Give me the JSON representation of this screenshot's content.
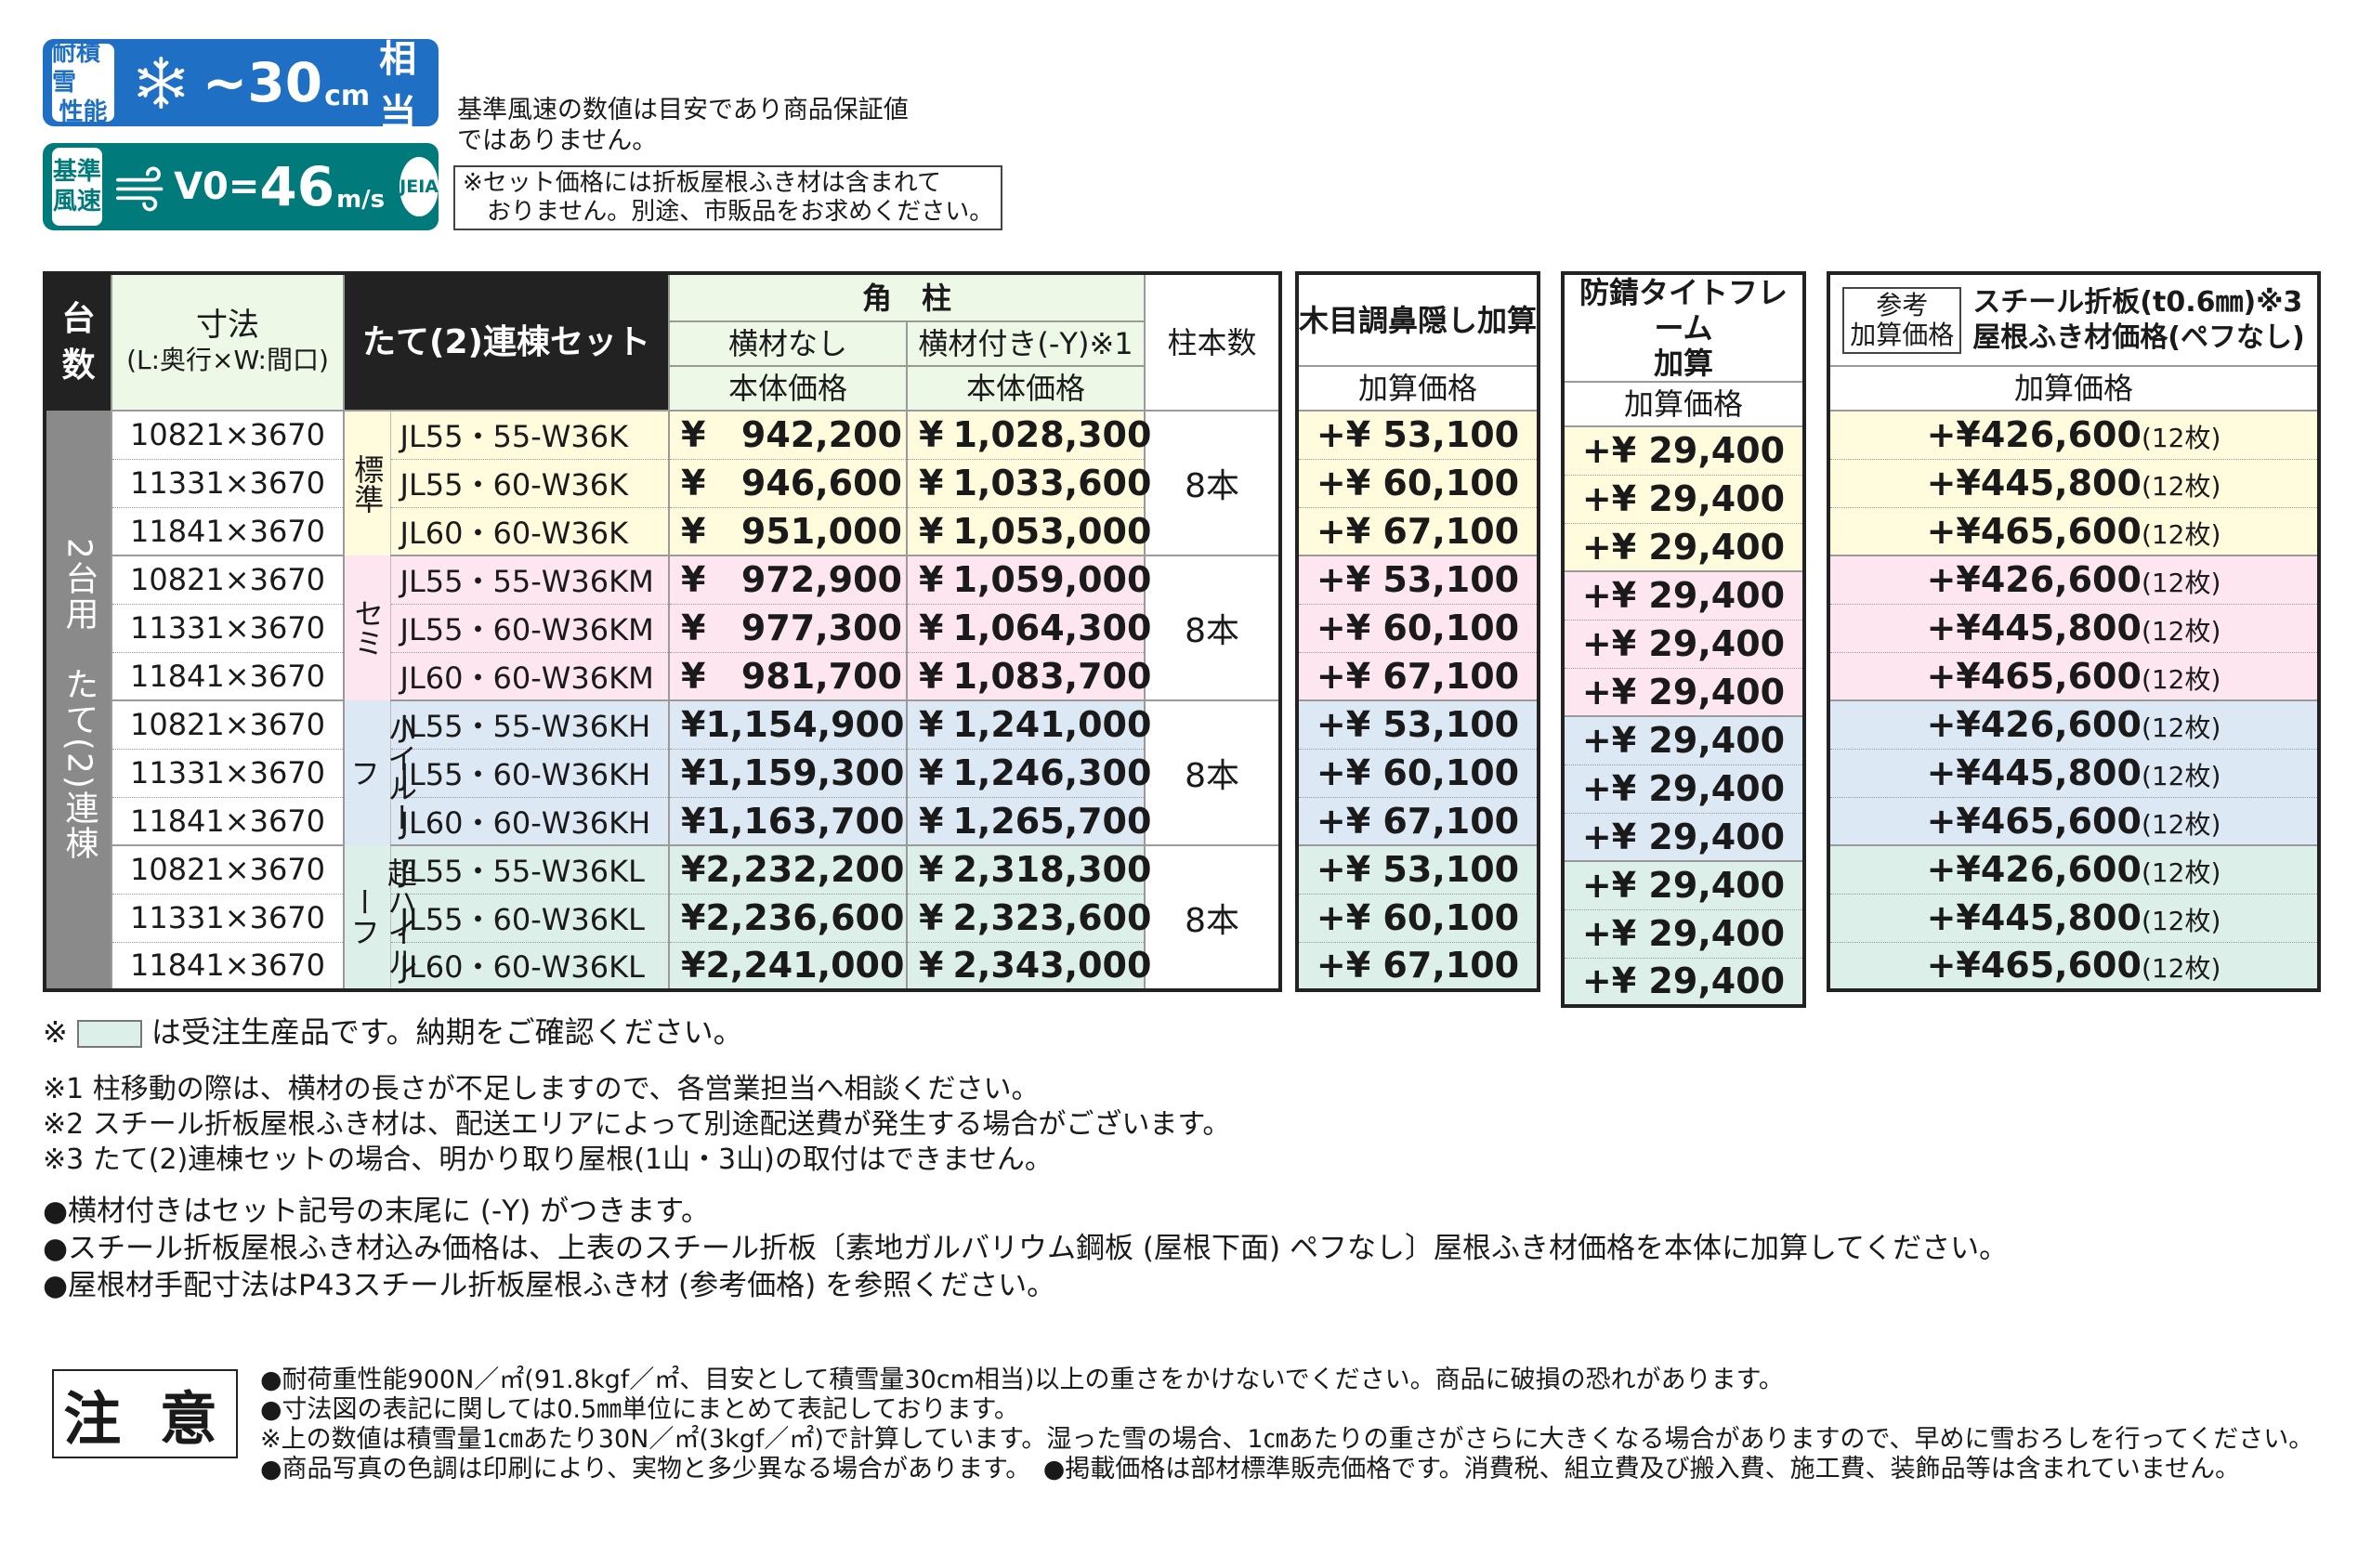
{
  "badges": {
    "snow": {
      "tag": [
        "耐積雪",
        "性能"
      ],
      "value": "~30",
      "unit": "cm",
      "suffix": "相当"
    },
    "wind": {
      "tag": [
        "基準",
        "風速"
      ],
      "prefix": "V0=",
      "value": "46",
      "unit": "m/s",
      "logo": "JEIA"
    }
  },
  "notes_top": {
    "wind_note": [
      "基準風速の数値は目安であり商品保証値",
      "ではありません。"
    ],
    "set_note": [
      "※セット価格には折板屋根ふき材は含まれて",
      "　おりません。別途、市販品をお求めください。"
    ]
  },
  "main_table": {
    "headers": {
      "units": [
        "台",
        "数"
      ],
      "size": [
        "寸法",
        "(L:奥行×W:間口)"
      ],
      "set": "たて(2)連棟セット",
      "post": "角　柱",
      "no_bar": "横材なし",
      "with_bar": "横材付き(-Y)※1",
      "body_price": "本体価格",
      "post_count": "柱本数"
    },
    "side_label": "2台用　たて(2)連棟",
    "groups": [
      {
        "label": "標準",
        "count": "8本",
        "rows": [
          {
            "size": "10821×3670",
            "code": "JL55・55-W36K",
            "no_bar": "942,200",
            "with_bar": "1,028,300"
          },
          {
            "size": "11331×3670",
            "code": "JL55・60-W36K",
            "no_bar": "946,600",
            "with_bar": "1,033,600"
          },
          {
            "size": "11841×3670",
            "code": "JL60・60-W36K",
            "no_bar": "951,000",
            "with_bar": "1,053,000"
          }
        ]
      },
      {
        "label": "セミ",
        "count": "8本",
        "rows": [
          {
            "size": "10821×3670",
            "code": "JL55・55-W36KM",
            "no_bar": "972,900",
            "with_bar": "1,059,000"
          },
          {
            "size": "11331×3670",
            "code": "JL55・60-W36KM",
            "no_bar": "977,300",
            "with_bar": "1,064,300"
          },
          {
            "size": "11841×3670",
            "code": "JL60・60-W36KM",
            "no_bar": "981,700",
            "with_bar": "1,083,700"
          }
        ]
      },
      {
        "label": "ハイルーフ",
        "count": "8本",
        "rows": [
          {
            "size": "10821×3670",
            "code": "JL55・55-W36KH",
            "no_bar": "1,154,900",
            "with_bar": "1,241,000"
          },
          {
            "size": "11331×3670",
            "code": "JL55・60-W36KH",
            "no_bar": "1,159,300",
            "with_bar": "1,246,300"
          },
          {
            "size": "11841×3670",
            "code": "JL60・60-W36KH",
            "no_bar": "1,163,700",
            "with_bar": "1,265,700"
          }
        ]
      },
      {
        "label": "超ハイルーフ",
        "count": "8本",
        "rows": [
          {
            "size": "10821×3670",
            "code": "JL55・55-W36KL",
            "no_bar": "2,232,200",
            "with_bar": "2,318,300"
          },
          {
            "size": "11331×3670",
            "code": "JL55・60-W36KL",
            "no_bar": "2,236,600",
            "with_bar": "2,323,600"
          },
          {
            "size": "11841×3670",
            "code": "JL60・60-W36KL",
            "no_bar": "2,241,000",
            "with_bar": "2,343,000"
          }
        ]
      }
    ],
    "yen": "¥"
  },
  "wood_table": {
    "header": "木目調鼻隠し加算",
    "sub": "加算価格",
    "values": [
      "+¥ 53,100",
      "+¥ 60,100",
      "+¥ 67,100"
    ]
  },
  "rust_table": {
    "header": [
      "防錆タイトフレーム",
      "加算"
    ],
    "sub": "加算価格",
    "value": "+¥ 29,400"
  },
  "steel_table": {
    "ref_tag": [
      "参考",
      "加算価格"
    ],
    "header": [
      "スチール折板(t0.6㎜)※3",
      "屋根ふき材価格(ペフなし)"
    ],
    "sub": "加算価格",
    "values": [
      "+¥426,600",
      "+¥445,800",
      "+¥465,600"
    ],
    "pieces": "(12枚)"
  },
  "legend": {
    "prefix": "※",
    "text": "は受注生産品です。納期をご確認ください。"
  },
  "footnotes": [
    "※1 柱移動の際は、横材の長さが不足しますので、各営業担当へ相談ください。",
    "※2 スチール折板屋根ふき材は、配送エリアによって別途配送費が発生する場合がございます。",
    "※3 たて(2)連棟セットの場合、明かり取り屋根(1山・3山)の取付はできません。"
  ],
  "bullets": [
    "●横材付きはセット記号の末尾に (-Y) がつきます。",
    "●スチール折板屋根ふき材込み価格は、上表のスチール折板〔素地ガルバリウム鋼板 (屋根下面) ペフなし〕屋根ふき材価格を本体に加算してください。",
    "●屋根材手配寸法はP43スチール折板屋根ふき材 (参考価格) を参照ください。"
  ],
  "caution": {
    "title": "注 意",
    "lines": [
      "●耐荷重性能900N／㎡(91.8kgf／㎡、目安として積雪量30cm相当)以上の重さをかけないでください。商品に破損の恐れがあります。",
      "●寸法図の表記に関しては0.5㎜単位にまとめて表記しております。",
      "※上の数値は積雪量1㎝あたり30N／㎡(3kgf／㎡)で計算しています。湿った雪の場合、1㎝あたりの重さがさらに大きくなる場合がありますので、早めに雪おろしを行ってください。",
      "●商品写真の色調は印刷により、実物と多少異なる場合があります。　●掲載価格は部材標準販売価格です。消費税、組立費及び搬入費、施工費、装飾品等は含まれていません。"
    ]
  },
  "colors": {
    "snow_badge": "#1f6fc4",
    "wind_badge": "#007a7a",
    "standard": "#fffbdc",
    "semi": "#fde6ef",
    "high": "#dce8f4",
    "super_high": "#dcefe8"
  }
}
